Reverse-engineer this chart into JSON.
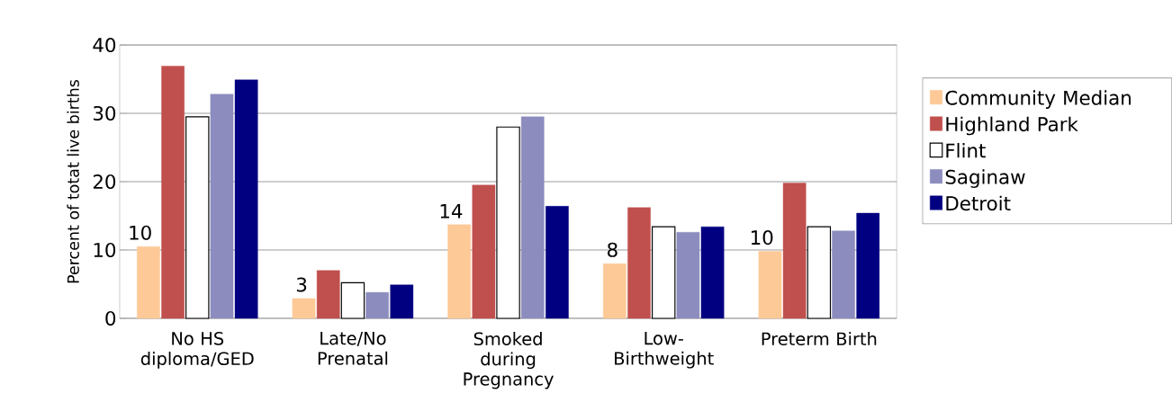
{
  "chart_data": {
    "type": "bar",
    "ylabel": "Percent of totat live births",
    "categories": [
      "No HS diploma/GED",
      "Late/No Prenatal",
      "Smoked during Pregnancy",
      "Low-Birthweight",
      "Preterm Birth"
    ],
    "series": [
      {
        "name": "Community Median",
        "color": "#fdc997",
        "values": [
          10.5,
          2.9,
          13.7,
          8.0,
          9.8
        ],
        "value_labels": [
          "10",
          "3",
          "14",
          "8",
          "10"
        ]
      },
      {
        "name": "Highland Park",
        "color": "#c0504d",
        "values": [
          36.9,
          7.0,
          19.5,
          16.2,
          19.8
        ]
      },
      {
        "name": "Flint",
        "color": "#ffffff",
        "values": [
          29.5,
          5.2,
          28.0,
          13.4,
          13.4
        ]
      },
      {
        "name": "Saginaw",
        "color": "#8c8cbe",
        "values": [
          32.8,
          3.8,
          29.5,
          12.6,
          12.8
        ]
      },
      {
        "name": "Detroit",
        "color": "#000080",
        "values": [
          34.9,
          4.9,
          16.4,
          13.4,
          15.4
        ]
      }
    ],
    "ylim": [
      0,
      40
    ],
    "yticks": [
      0,
      10,
      20,
      30,
      40
    ],
    "grid": "y",
    "legend": "right"
  }
}
